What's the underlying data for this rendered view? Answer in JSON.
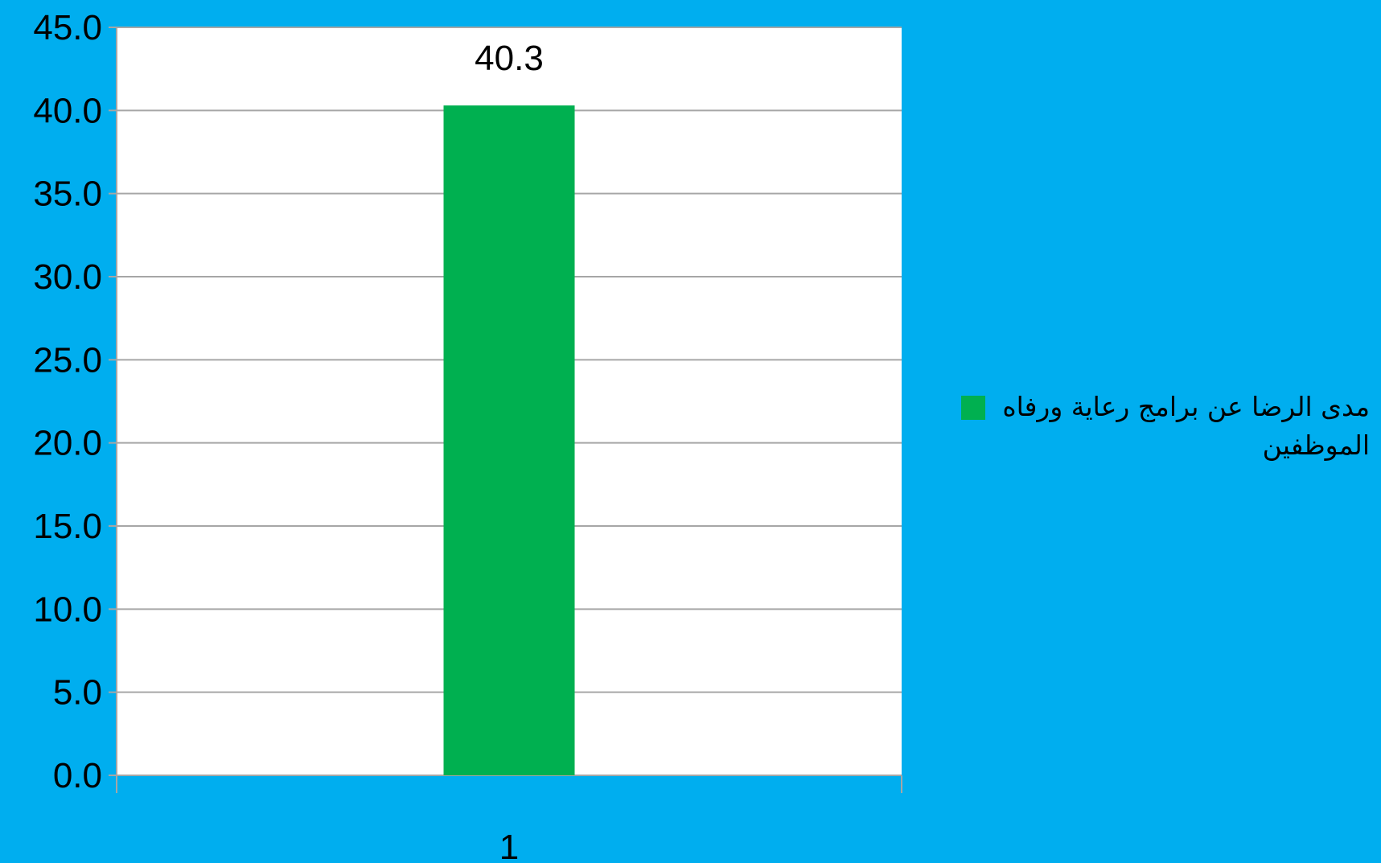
{
  "chart_data": {
    "type": "bar",
    "categories": [
      "1"
    ],
    "series": [
      {
        "name": "مدى الرضا عن برامج رعاية ورفاه الموظفين",
        "values": [
          40.3
        ],
        "data_labels": [
          "40.3"
        ],
        "color": "#00B050"
      }
    ],
    "ylim": [
      0,
      45
    ],
    "y_ticks": [
      0,
      5,
      10,
      15,
      20,
      25,
      30,
      35,
      40,
      45
    ],
    "y_tick_labels": [
      "0.0",
      "5.0",
      "10.0",
      "15.0",
      "20.0",
      "25.0",
      "30.0",
      "35.0",
      "40.0",
      "45.0"
    ],
    "title": "",
    "xlabel": "",
    "ylabel": "",
    "grid": true,
    "legend_position": "right",
    "colors": {
      "background": "#00AEEF",
      "plot_area": "#FFFFFF",
      "gridline": "#A6A6A6",
      "bar": "#00B050"
    }
  }
}
